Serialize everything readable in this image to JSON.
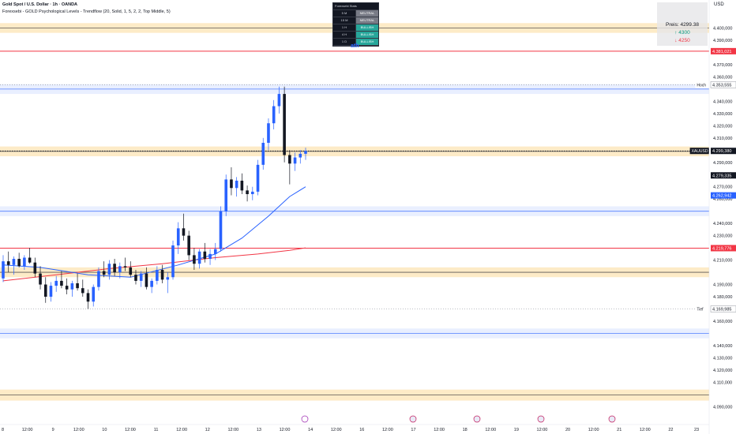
{
  "header": {
    "title": "Gold Spot / U.S. Dollar · 1h · OANDA",
    "indicator": "Forexsebi - GOLD Psychological Levels - Trendflow (20, Solid, 1, 5, 2, 2, Top Middle, 5)",
    "currency": "USD"
  },
  "timeframe_table": {
    "title": "Forexsebi Stats",
    "rows": [
      {
        "tf": "5 M",
        "state": "NEUTRAL"
      },
      {
        "tf": "15 M",
        "state": "NEUTRAL"
      },
      {
        "tf": "1 H",
        "state": "BULLISH"
      },
      {
        "tf": "4 H",
        "state": "BULLISH"
      },
      {
        "tf": "1 D",
        "state": "BULLISH"
      }
    ]
  },
  "ath_label": "ath",
  "price_box": {
    "price": "Preis: 4299.38",
    "up": "↑ 4300",
    "down": "↓ 4250"
  },
  "colors": {
    "bull": "#2962ff",
    "bear": "#131722",
    "ma_fast": "#2962ff",
    "ma_slow": "#f23645",
    "orange_zone": "#f7a600",
    "blue_zone": "#2962ff"
  },
  "chart_data": {
    "type": "candlestick",
    "symbol": "XAUUSD",
    "ylim": [
      4087,
      4410
    ],
    "y_ticks": [
      "4.400,000",
      "4.390,000",
      "4.370,000",
      "4.360,000",
      "4.340,000",
      "4.330,000",
      "4.320,000",
      "4.310,000",
      "4.290,000",
      "4.270,000",
      "4.260,000",
      "4.240,000",
      "4.230,000",
      "4.220,000",
      "4.210,000",
      "4.190,000",
      "4.180,000",
      "4.170,000",
      "4.160,000",
      "4.140,000",
      "4.130,000",
      "4.120,000",
      "4.110,000",
      "4.090,000"
    ],
    "x_ticks": [
      "8",
      "12:00",
      "9",
      "12:00",
      "10",
      "12:00",
      "11",
      "12:00",
      "12",
      "12:00",
      "13",
      "12:00",
      "14",
      "12:00",
      "16",
      "12:00",
      "17",
      "12:00",
      "18",
      "12:00",
      "19",
      "12:00",
      "20",
      "12:00",
      "21",
      "12:00",
      "22",
      "23"
    ],
    "price_labels": [
      {
        "name": "",
        "text": "4.381,021",
        "value": 4381.021,
        "style": "red"
      },
      {
        "name": "Hoch",
        "text": "4.353,555",
        "value": 4353.555,
        "style": "outline"
      },
      {
        "name": "XAUUSD",
        "text": "4.299,380",
        "value": 4299.38,
        "style": "dark"
      },
      {
        "name": "",
        "text": "4.279,335",
        "value": 4279.335,
        "style": "dark"
      },
      {
        "name": "",
        "text": "4.262,942",
        "value": 4262.942,
        "style": "blue"
      },
      {
        "name": "",
        "text": "4.219,776",
        "value": 4219.776,
        "style": "red"
      },
      {
        "name": "Tief",
        "text": "4.169,985",
        "value": 4169.985,
        "style": "outline"
      }
    ],
    "zones": [
      {
        "type": "orange",
        "low": 4396,
        "high": 4404
      },
      {
        "type": "orange",
        "low": 4295,
        "high": 4303
      },
      {
        "type": "orange",
        "low": 4196,
        "high": 4204
      },
      {
        "type": "orange",
        "low": 4095,
        "high": 4104
      },
      {
        "type": "blue",
        "low": 4346,
        "high": 4354
      },
      {
        "type": "blue",
        "low": 4246,
        "high": 4254
      },
      {
        "type": "blue",
        "low": 4146,
        "high": 4154
      }
    ],
    "candles": [
      [
        4195,
        4214,
        4192,
        4209
      ],
      [
        4209,
        4217,
        4200,
        4206
      ],
      [
        4206,
        4213,
        4198,
        4211
      ],
      [
        4211,
        4216,
        4204,
        4205
      ],
      [
        4205,
        4214,
        4202,
        4212
      ],
      [
        4212,
        4220,
        4207,
        4208
      ],
      [
        4208,
        4212,
        4196,
        4199
      ],
      [
        4199,
        4205,
        4186,
        4190
      ],
      [
        4190,
        4196,
        4175,
        4180
      ],
      [
        4180,
        4192,
        4176,
        4189
      ],
      [
        4189,
        4197,
        4184,
        4193
      ],
      [
        4193,
        4201,
        4187,
        4189
      ],
      [
        4189,
        4195,
        4182,
        4186
      ],
      [
        4186,
        4193,
        4180,
        4191
      ],
      [
        4191,
        4199,
        4185,
        4187
      ],
      [
        4187,
        4194,
        4180,
        4183
      ],
      [
        4183,
        4186,
        4170,
        4176
      ],
      [
        4176,
        4190,
        4172,
        4188
      ],
      [
        4188,
        4204,
        4185,
        4201
      ],
      [
        4201,
        4209,
        4196,
        4198
      ],
      [
        4198,
        4210,
        4194,
        4207
      ],
      [
        4207,
        4211,
        4197,
        4200
      ],
      [
        4200,
        4208,
        4195,
        4205
      ],
      [
        4205,
        4212,
        4201,
        4204
      ],
      [
        4204,
        4209,
        4196,
        4198
      ],
      [
        4198,
        4202,
        4190,
        4193
      ],
      [
        4193,
        4201,
        4188,
        4199
      ],
      [
        4199,
        4204,
        4186,
        4188
      ],
      [
        4188,
        4195,
        4183,
        4193
      ],
      [
        4193,
        4205,
        4190,
        4202
      ],
      [
        4202,
        4206,
        4191,
        4194
      ],
      [
        4194,
        4200,
        4183,
        4196
      ],
      [
        4196,
        4226,
        4194,
        4222
      ],
      [
        4222,
        4241,
        4215,
        4236
      ],
      [
        4236,
        4248,
        4226,
        4230
      ],
      [
        4230,
        4234,
        4210,
        4214
      ],
      [
        4214,
        4220,
        4202,
        4207
      ],
      [
        4207,
        4219,
        4203,
        4217
      ],
      [
        4217,
        4224,
        4208,
        4211
      ],
      [
        4211,
        4219,
        4206,
        4215
      ],
      [
        4215,
        4224,
        4210,
        4219
      ],
      [
        4219,
        4254,
        4217,
        4250
      ],
      [
        4250,
        4280,
        4246,
        4276
      ],
      [
        4276,
        4286,
        4263,
        4269
      ],
      [
        4269,
        4278,
        4262,
        4275
      ],
      [
        4275,
        4281,
        4264,
        4267
      ],
      [
        4267,
        4271,
        4258,
        4264
      ],
      [
        4264,
        4270,
        4259,
        4266
      ],
      [
        4266,
        4292,
        4263,
        4288
      ],
      [
        4288,
        4310,
        4284,
        4306
      ],
      [
        4306,
        4326,
        4300,
        4322
      ],
      [
        4322,
        4341,
        4317,
        4336
      ],
      [
        4336,
        4352,
        4330,
        4346
      ],
      [
        4346,
        4352,
        4290,
        4296
      ],
      [
        4296,
        4300,
        4272,
        4289
      ],
      [
        4289,
        4298,
        4283,
        4294
      ],
      [
        4294,
        4300,
        4289,
        4297
      ],
      [
        4297,
        4302,
        4292,
        4299.38
      ]
    ],
    "ma_fast": [
      [
        0,
        4206
      ],
      [
        7,
        4204
      ],
      [
        16,
        4198
      ],
      [
        24,
        4196
      ],
      [
        33,
        4206
      ],
      [
        40,
        4215
      ],
      [
        45,
        4228
      ],
      [
        50,
        4246
      ],
      [
        54,
        4262
      ],
      [
        57,
        4270
      ]
    ],
    "ma_slow": [
      [
        0,
        4193
      ],
      [
        10,
        4198
      ],
      [
        20,
        4203
      ],
      [
        30,
        4207
      ],
      [
        40,
        4212
      ],
      [
        48,
        4215
      ],
      [
        54,
        4218
      ],
      [
        57,
        4220
      ]
    ]
  }
}
